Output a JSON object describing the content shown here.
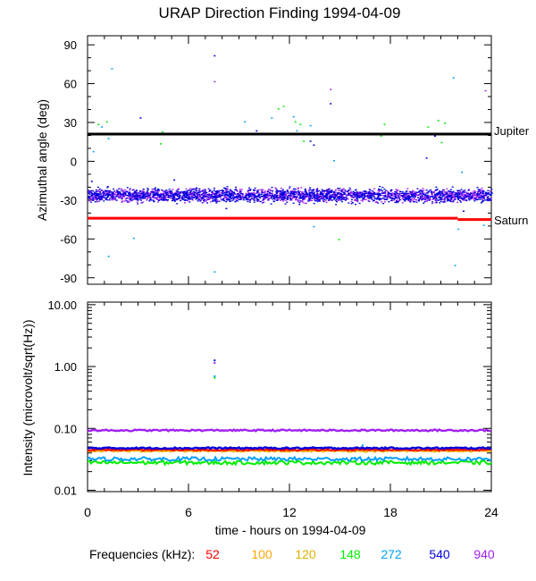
{
  "title": "URAP Direction Finding  1994-04-09",
  "xlabel": "time - hours on 1994-04-09",
  "legend_label": "Frequencies (kHz):",
  "colors": {
    "52": "#ff0000",
    "100": "#ffa500",
    "120": "#e0b000",
    "148": "#00ee00",
    "272": "#00a0ff",
    "540": "#0000dd",
    "940": "#a020f0"
  },
  "frequencies": [
    {
      "label": "52",
      "color": "#ff0000"
    },
    {
      "label": "100",
      "color": "#ffa500"
    },
    {
      "label": "120",
      "color": "#e0b000"
    },
    {
      "label": "148",
      "color": "#00ee00"
    },
    {
      "label": "272",
      "color": "#00a0ff"
    },
    {
      "label": "540",
      "color": "#0000dd"
    },
    {
      "label": "940",
      "color": "#a020f0"
    }
  ],
  "chart_data": [
    {
      "type": "scatter",
      "ylabel": "Azimuthal angle (deg)",
      "xlim": [
        0,
        24
      ],
      "ylim": [
        -95,
        97
      ],
      "x_ticks": [
        0,
        6,
        12,
        18,
        24
      ],
      "y_ticks": [
        90,
        60,
        30,
        0,
        -30,
        -60,
        -90
      ],
      "reference_lines": [
        {
          "label": "Jupiter",
          "y": 21,
          "color": "#000000"
        },
        {
          "label": "Saturn",
          "y": -44,
          "y_end": -45,
          "color": "#ff0000"
        }
      ],
      "bands": [
        {
          "name": "940",
          "color": "#a020f0",
          "center": -26,
          "spread": 7
        },
        {
          "name": "540",
          "color": "#0000dd",
          "center": -26,
          "spread": 8
        }
      ],
      "series": [
        {
          "name": "272",
          "color": "#00a0ff",
          "points": [
            [
              0.3,
              8
            ],
            [
              0.8,
              27
            ],
            [
              1.2,
              18
            ],
            [
              1.4,
              72
            ],
            [
              1.2,
              -73
            ],
            [
              2.7,
              -59
            ],
            [
              7.5,
              -85
            ],
            [
              9.3,
              31
            ],
            [
              10.9,
              34
            ],
            [
              12.2,
              35
            ],
            [
              12.4,
              24
            ],
            [
              13.2,
              28
            ],
            [
              13.4,
              -50
            ],
            [
              14.6,
              1
            ],
            [
              21.1,
              22
            ],
            [
              21.7,
              65
            ],
            [
              21.8,
              -80
            ],
            [
              22.0,
              -52
            ],
            [
              22.2,
              -8
            ],
            [
              23.5,
              -49
            ]
          ]
        },
        {
          "name": "148",
          "color": "#00ee00",
          "points": [
            [
              0.6,
              29
            ],
            [
              1.1,
              31
            ],
            [
              4.3,
              14
            ],
            [
              4.4,
              23
            ],
            [
              11.3,
              41
            ],
            [
              11.6,
              43
            ],
            [
              12.3,
              31
            ],
            [
              12.6,
              29
            ],
            [
              12.8,
              16
            ],
            [
              14.9,
              -60
            ],
            [
              17.4,
              20
            ],
            [
              17.6,
              29
            ],
            [
              20.2,
              27
            ],
            [
              20.8,
              32
            ],
            [
              21.0,
              15
            ],
            [
              21.2,
              30
            ]
          ]
        },
        {
          "name": "540",
          "color": "#0000dd",
          "points": [
            [
              3.1,
              34
            ],
            [
              7.5,
              82
            ],
            [
              10.0,
              24
            ],
            [
              13.2,
              16
            ],
            [
              13.4,
              13
            ],
            [
              14.4,
              45
            ],
            [
              20.1,
              3
            ],
            [
              20.6,
              20
            ],
            [
              22.3,
              -38
            ],
            [
              0.2,
              -15
            ],
            [
              5.1,
              -14
            ],
            [
              8.2,
              -36
            ]
          ]
        },
        {
          "name": "940",
          "color": "#a020f0",
          "points": [
            [
              7.5,
              62
            ],
            [
              14.4,
              56
            ],
            [
              23.6,
              55
            ]
          ]
        }
      ]
    },
    {
      "type": "line",
      "ylabel": "Intensity (microvolt/sqrt(Hz))",
      "yscale": "log",
      "xlim": [
        0,
        24
      ],
      "ylim": [
        0.0095,
        11
      ],
      "x_ticks": [
        0,
        6,
        12,
        18,
        24
      ],
      "y_ticks": [
        10.0,
        1.0,
        0.1,
        0.01
      ],
      "y_tick_labels": [
        "10.00",
        "1.00",
        "0.10",
        "0.01"
      ],
      "series": [
        {
          "name": "940",
          "color": "#a020f0",
          "level": 0.093
        },
        {
          "name": "540",
          "color": "#0000dd",
          "level": 0.048
        },
        {
          "name": "52",
          "color": "#ff0000",
          "level": 0.045
        },
        {
          "name": "100",
          "color": "#ffa500",
          "level": 0.044
        },
        {
          "name": "120",
          "color": "#e0b000",
          "level": 0.043
        },
        {
          "name": "272",
          "color": "#00a0ff",
          "level": 0.032
        },
        {
          "name": "148",
          "color": "#00ee00",
          "level": 0.028
        }
      ],
      "outliers": [
        {
          "name": "540",
          "color": "#0000dd",
          "x": 7.5,
          "y": 1.3
        },
        {
          "name": "940",
          "color": "#a020f0",
          "x": 7.5,
          "y": 1.18
        },
        {
          "name": "148",
          "color": "#00ee00",
          "x": 7.5,
          "y": 0.68
        },
        {
          "name": "272",
          "color": "#00a0ff",
          "x": 7.5,
          "y": 0.72
        },
        {
          "name": "272",
          "color": "#00a0ff",
          "x": 16.3,
          "y": 0.055
        }
      ]
    }
  ]
}
